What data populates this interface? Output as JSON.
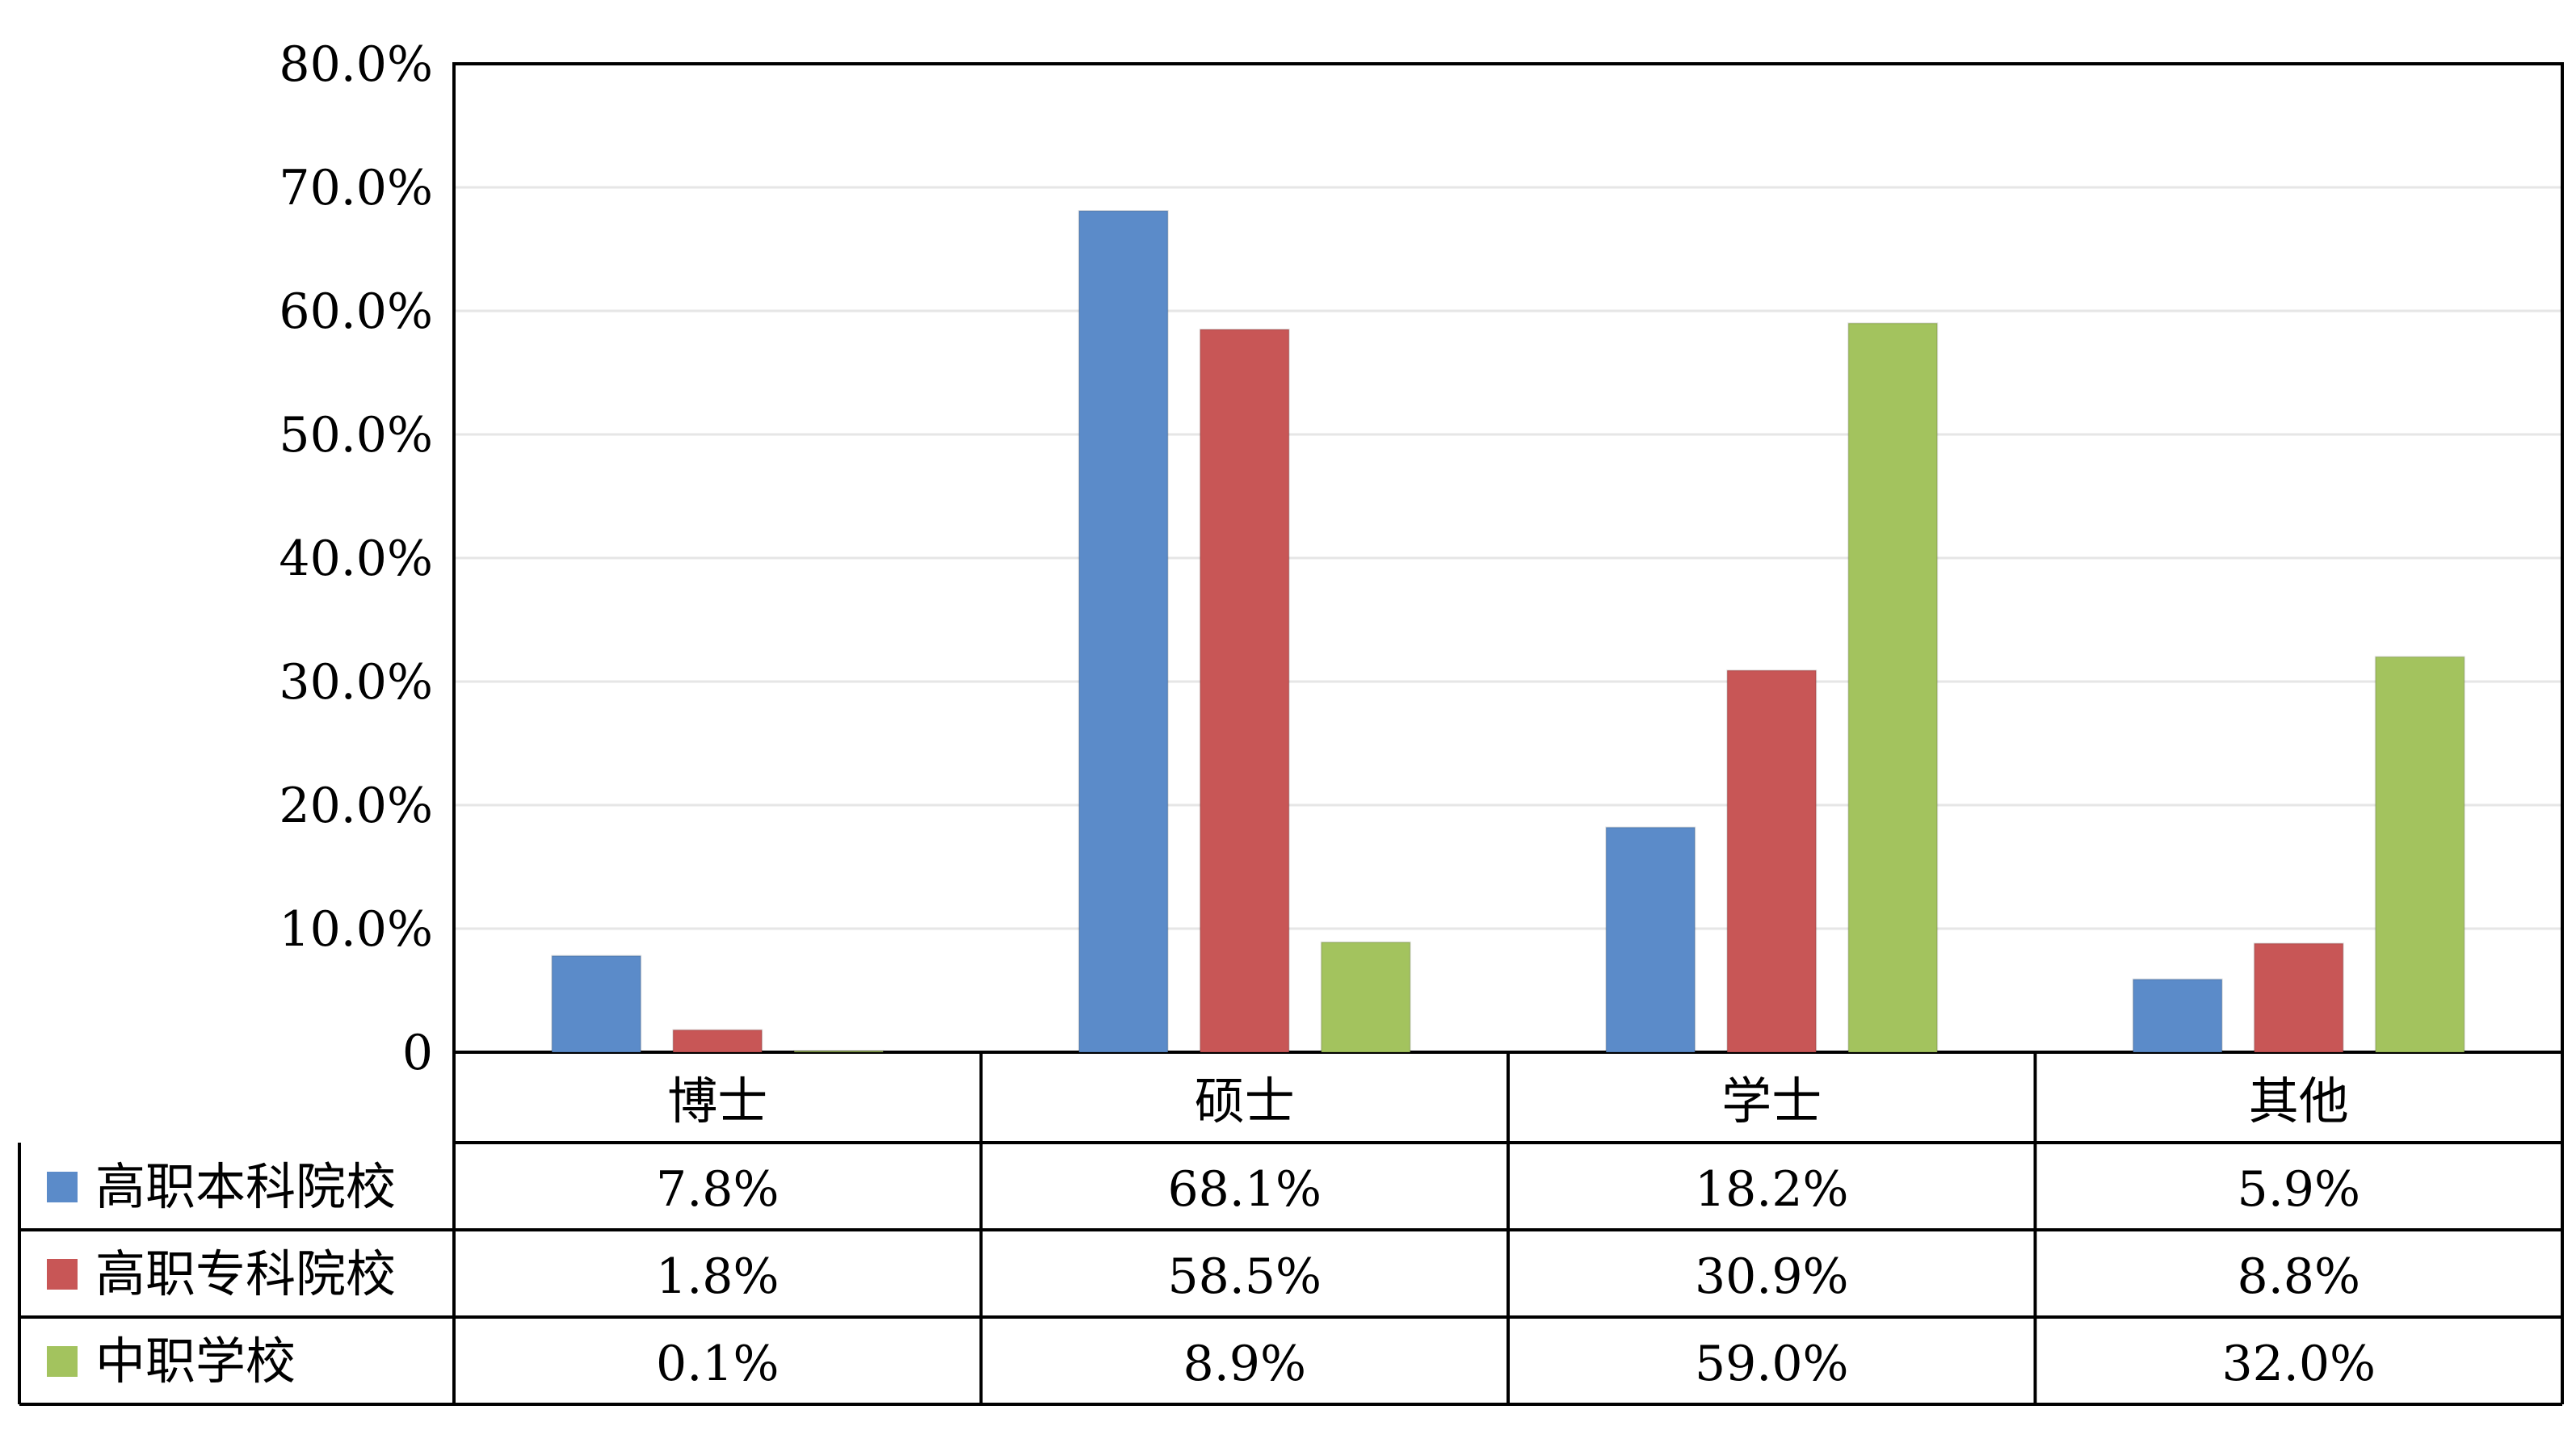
{
  "chart_data": {
    "type": "bar",
    "categories": [
      "博士",
      "硕士",
      "学士",
      "其他"
    ],
    "series": [
      {
        "name": "高职本科院校",
        "color": "#5b8bc9",
        "values": [
          7.8,
          68.1,
          18.2,
          5.9
        ],
        "labels": [
          "7.8%",
          "68.1%",
          "18.2%",
          "5.9%"
        ]
      },
      {
        "name": "高职专科院校",
        "color": "#c85656",
        "values": [
          1.8,
          58.5,
          30.9,
          8.8
        ],
        "labels": [
          "1.8%",
          "58.5%",
          "30.9%",
          "8.8%"
        ]
      },
      {
        "name": "中职学校",
        "color": "#a3c35e",
        "values": [
          0.1,
          8.9,
          59.0,
          32.0
        ],
        "labels": [
          "0.1%",
          "8.9%",
          "59.0%",
          "32.0%"
        ]
      }
    ],
    "ylim": [
      0,
      80
    ],
    "yticks": [
      0,
      10,
      20,
      30,
      40,
      50,
      60,
      70,
      80
    ],
    "ytick_labels": [
      "0",
      "10.0%",
      "20.0%",
      "30.0%",
      "40.0%",
      "50.0%",
      "60.0%",
      "70.0%",
      "80.0%"
    ],
    "grid": true,
    "legend": "data-table-left"
  }
}
